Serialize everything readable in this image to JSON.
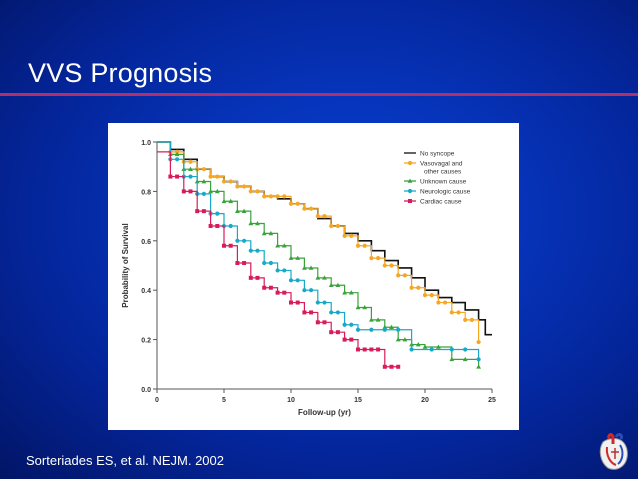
{
  "slide": {
    "title": "VVS Prognosis",
    "citation": "Sorteriades ES, et al. NEJM. 2002"
  },
  "colors": {
    "background": "#0633b8",
    "title_rule": "#b0306a",
    "title_text": "#ffffff"
  },
  "logo": {
    "icon": "heart-anatomy-icon"
  },
  "chart_data": {
    "type": "line",
    "step": true,
    "title": "",
    "xlabel": "Follow-up (yr)",
    "ylabel": "Probability of Survival",
    "xlim": [
      0,
      25
    ],
    "ylim": [
      0,
      1.0
    ],
    "xticks": [
      0,
      5,
      10,
      15,
      20,
      25
    ],
    "yticks": [
      "0.0",
      "0.2",
      "0.4",
      "0.6",
      "0.8",
      "1.0"
    ],
    "grid": false,
    "legend_position": "top-right",
    "series": [
      {
        "name": "No syncope",
        "color": "#111111",
        "marker": "none",
        "points": [
          [
            0,
            1.0
          ],
          [
            1,
            0.97
          ],
          [
            2,
            0.93
          ],
          [
            3,
            0.89
          ],
          [
            4,
            0.86
          ],
          [
            5,
            0.84
          ],
          [
            6,
            0.82
          ],
          [
            7,
            0.8
          ],
          [
            8,
            0.78
          ],
          [
            9,
            0.77
          ],
          [
            10,
            0.75
          ],
          [
            11,
            0.73
          ],
          [
            12,
            0.69
          ],
          [
            13,
            0.66
          ],
          [
            14,
            0.63
          ],
          [
            15,
            0.6
          ],
          [
            16,
            0.56
          ],
          [
            17,
            0.52
          ],
          [
            18,
            0.49
          ],
          [
            19,
            0.45
          ],
          [
            20,
            0.4
          ],
          [
            21,
            0.37
          ],
          [
            22,
            0.35
          ],
          [
            23,
            0.32
          ],
          [
            24,
            0.28
          ],
          [
            24.5,
            0.22
          ],
          [
            25,
            0.22
          ]
        ]
      },
      {
        "name": "Vasovagal and other causes",
        "color": "#f5a623",
        "marker": "circle",
        "points": [
          [
            0,
            1.0
          ],
          [
            1,
            0.96
          ],
          [
            2,
            0.92
          ],
          [
            3,
            0.89
          ],
          [
            4,
            0.86
          ],
          [
            5,
            0.84
          ],
          [
            6,
            0.82
          ],
          [
            7,
            0.8
          ],
          [
            8,
            0.78
          ],
          [
            9,
            0.78
          ],
          [
            10,
            0.75
          ],
          [
            11,
            0.73
          ],
          [
            12,
            0.7
          ],
          [
            13,
            0.66
          ],
          [
            14,
            0.62
          ],
          [
            15,
            0.58
          ],
          [
            16,
            0.53
          ],
          [
            17,
            0.5
          ],
          [
            18,
            0.46
          ],
          [
            19,
            0.41
          ],
          [
            20,
            0.38
          ],
          [
            21,
            0.35
          ],
          [
            22,
            0.31
          ],
          [
            23,
            0.28
          ],
          [
            24,
            0.19
          ]
        ]
      },
      {
        "name": "Unknown cause",
        "color": "#3aa23a",
        "marker": "triangle",
        "points": [
          [
            0,
            1.0
          ],
          [
            1,
            0.95
          ],
          [
            2,
            0.89
          ],
          [
            3,
            0.84
          ],
          [
            4,
            0.8
          ],
          [
            5,
            0.76
          ],
          [
            6,
            0.72
          ],
          [
            7,
            0.67
          ],
          [
            8,
            0.63
          ],
          [
            9,
            0.58
          ],
          [
            10,
            0.53
          ],
          [
            11,
            0.49
          ],
          [
            12,
            0.45
          ],
          [
            13,
            0.42
          ],
          [
            14,
            0.39
          ],
          [
            15,
            0.33
          ],
          [
            16,
            0.28
          ],
          [
            17,
            0.25
          ],
          [
            18,
            0.2
          ],
          [
            19,
            0.18
          ],
          [
            20,
            0.17
          ],
          [
            22,
            0.12
          ],
          [
            24,
            0.09
          ]
        ]
      },
      {
        "name": "Neurologic cause",
        "color": "#18a9c9",
        "marker": "circle",
        "points": [
          [
            0,
            1.0
          ],
          [
            1,
            0.93
          ],
          [
            2,
            0.86
          ],
          [
            3,
            0.79
          ],
          [
            4,
            0.71
          ],
          [
            5,
            0.66
          ],
          [
            6,
            0.6
          ],
          [
            7,
            0.56
          ],
          [
            8,
            0.51
          ],
          [
            9,
            0.48
          ],
          [
            10,
            0.44
          ],
          [
            11,
            0.4
          ],
          [
            12,
            0.35
          ],
          [
            13,
            0.31
          ],
          [
            14,
            0.26
          ],
          [
            15,
            0.24
          ],
          [
            17,
            0.24
          ],
          [
            19,
            0.16
          ],
          [
            22,
            0.16
          ],
          [
            24,
            0.12
          ]
        ]
      },
      {
        "name": "Cardiac cause",
        "color": "#d81c5a",
        "marker": "square",
        "points": [
          [
            0,
            0.96
          ],
          [
            1,
            0.86
          ],
          [
            2,
            0.8
          ],
          [
            3,
            0.72
          ],
          [
            4,
            0.66
          ],
          [
            5,
            0.58
          ],
          [
            6,
            0.51
          ],
          [
            7,
            0.45
          ],
          [
            8,
            0.41
          ],
          [
            9,
            0.39
          ],
          [
            10,
            0.35
          ],
          [
            11,
            0.31
          ],
          [
            12,
            0.27
          ],
          [
            13,
            0.23
          ],
          [
            14,
            0.2
          ],
          [
            15,
            0.16
          ],
          [
            16,
            0.16
          ],
          [
            17,
            0.09
          ],
          [
            18,
            0.09
          ]
        ]
      }
    ]
  }
}
